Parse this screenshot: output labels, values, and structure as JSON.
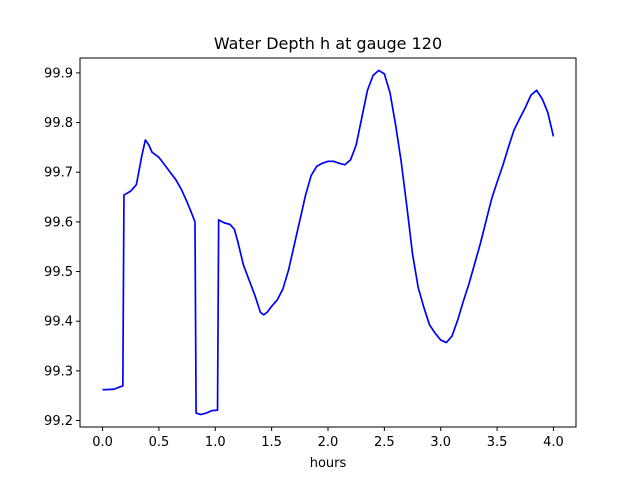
{
  "chart_data": {
    "type": "line",
    "title": "Water Depth h at gauge 120",
    "xlabel": "hours",
    "ylabel": "",
    "xlim": [
      -0.2,
      4.2
    ],
    "ylim": [
      99.187,
      99.93
    ],
    "grid": false,
    "x_ticks": [
      0.0,
      0.5,
      1.0,
      1.5,
      2.0,
      2.5,
      3.0,
      3.5,
      4.0
    ],
    "x_tick_labels": [
      "0.0",
      "0.5",
      "1.0",
      "1.5",
      "2.0",
      "2.5",
      "3.0",
      "3.5",
      "4.0"
    ],
    "y_ticks": [
      99.2,
      99.3,
      99.4,
      99.5,
      99.6,
      99.7,
      99.8,
      99.9
    ],
    "y_tick_labels": [
      "99.2",
      "99.3",
      "99.4",
      "99.5",
      "99.6",
      "99.7",
      "99.8",
      "99.9"
    ],
    "series": [
      {
        "color": "#0000ff",
        "x": [
          0.0,
          0.1,
          0.18,
          0.19,
          0.25,
          0.3,
          0.35,
          0.38,
          0.41,
          0.44,
          0.5,
          0.55,
          0.6,
          0.65,
          0.7,
          0.75,
          0.8,
          0.82,
          0.83,
          0.87,
          0.92,
          0.97,
          1.02,
          1.03,
          1.08,
          1.13,
          1.17,
          1.2,
          1.25,
          1.3,
          1.35,
          1.4,
          1.43,
          1.46,
          1.5,
          1.55,
          1.6,
          1.65,
          1.7,
          1.75,
          1.8,
          1.85,
          1.9,
          1.95,
          2.0,
          2.05,
          2.1,
          2.15,
          2.2,
          2.25,
          2.3,
          2.35,
          2.4,
          2.45,
          2.5,
          2.55,
          2.6,
          2.65,
          2.7,
          2.75,
          2.8,
          2.85,
          2.9,
          2.95,
          3.0,
          3.05,
          3.1,
          3.15,
          3.2,
          3.25,
          3.3,
          3.35,
          3.4,
          3.45,
          3.5,
          3.55,
          3.6,
          3.65,
          3.7,
          3.75,
          3.8,
          3.85,
          3.9,
          3.95,
          4.0
        ],
        "y": [
          99.262,
          99.263,
          99.27,
          99.654,
          99.662,
          99.675,
          99.735,
          99.765,
          99.755,
          99.74,
          99.73,
          99.715,
          99.7,
          99.685,
          99.665,
          99.64,
          99.612,
          99.6,
          99.215,
          99.212,
          99.215,
          99.22,
          99.221,
          99.604,
          99.598,
          99.595,
          99.585,
          99.56,
          99.513,
          99.483,
          99.453,
          99.418,
          99.413,
          99.418,
          99.43,
          99.443,
          99.465,
          99.503,
          99.553,
          99.603,
          99.653,
          99.693,
          99.712,
          99.718,
          99.722,
          99.722,
          99.718,
          99.715,
          99.725,
          99.755,
          99.81,
          99.865,
          99.895,
          99.905,
          99.898,
          99.86,
          99.795,
          99.72,
          99.63,
          99.535,
          99.468,
          99.428,
          99.393,
          99.376,
          99.362,
          99.357,
          99.37,
          99.402,
          99.44,
          99.475,
          99.515,
          99.555,
          99.6,
          99.645,
          99.68,
          99.713,
          99.75,
          99.785,
          99.808,
          99.83,
          99.855,
          99.865,
          99.848,
          99.82,
          99.772
        ]
      }
    ]
  }
}
